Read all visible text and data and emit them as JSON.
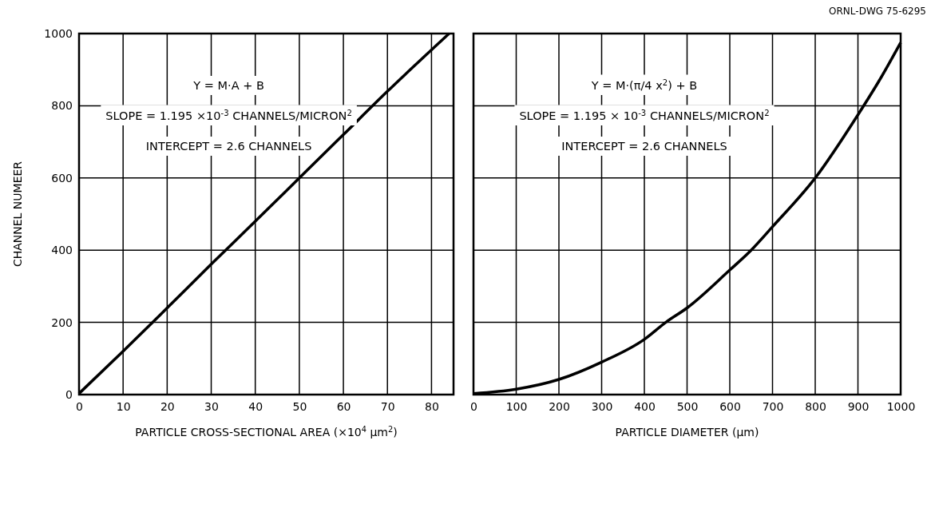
{
  "chart_data": [
    {
      "type": "line",
      "xlabel": "PARTICLE CROSS-SECTIONAL AREA (×10$^{4}$ μm$^{2}$)",
      "ylabel": "CHANNEL NUMEER",
      "x": [
        0,
        10,
        20,
        30,
        40,
        50,
        60,
        70,
        84
      ],
      "series": [
        {
          "color": "#000000",
          "values": [
            3,
            120,
            240,
            361,
            480,
            600,
            720,
            840,
            1000
          ]
        }
      ],
      "xlim": [
        0,
        85
      ],
      "xticks": [
        0,
        10,
        20,
        30,
        40,
        50,
        60,
        70,
        80
      ],
      "ylim": [
        0,
        1000
      ],
      "yticks": [
        0,
        200,
        400,
        600,
        800,
        1000
      ],
      "grid": true,
      "marker": "none",
      "line_style": "solid",
      "annotations": [
        "Y = M·A + B",
        "SLOPE = 1.195 ×10$^{-3}$ CHANNELS/MICRON$^{2}$",
        "INTERCEPT = 2.6 CHANNELS"
      ]
    },
    {
      "type": "line",
      "xlabel": "PARTICLE DIAMETER (μm)",
      "x": [
        0,
        100,
        200,
        300,
        400,
        450,
        500,
        600,
        650,
        700,
        800,
        900,
        950,
        1000
      ],
      "series": [
        {
          "color": "#000000",
          "values": [
            3,
            15,
            42,
            90,
            153,
            200,
            240,
            345,
            400,
            465,
            600,
            775,
            870,
            975
          ]
        }
      ],
      "xlim": [
        0,
        1000
      ],
      "xticks": [
        0,
        100,
        200,
        300,
        400,
        500,
        600,
        700,
        800,
        900,
        1000
      ],
      "ylim": [
        0,
        1000
      ],
      "yticks": [
        0,
        200,
        400,
        600,
        800,
        1000
      ],
      "tick_labels": "x",
      "grid": true,
      "marker": "none",
      "line_style": "solid",
      "annotations": [
        "Y = M·(π/4 x$^{2}$) + B",
        "SLOPE = 1.195 × 10$^{-3}$ CHANNELS/MICRON$^{2}$",
        "INTERCEPT = 2.6 CHANNELS",
        "ORNL-DWG 75-6295"
      ]
    }
  ]
}
